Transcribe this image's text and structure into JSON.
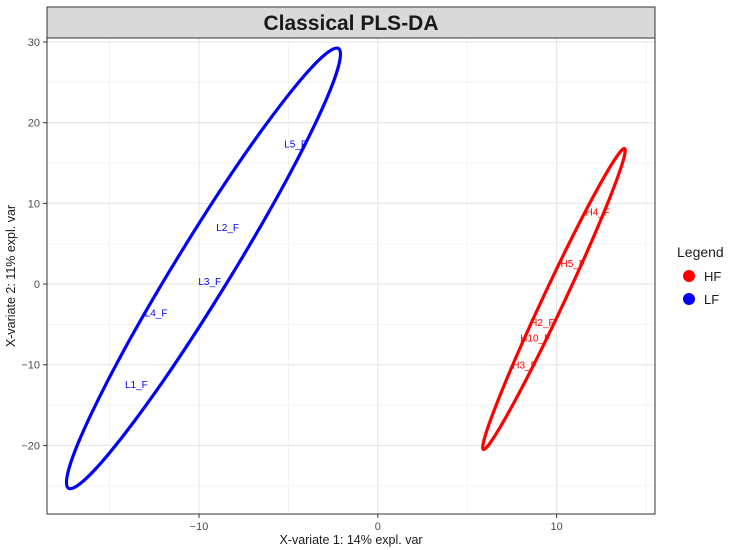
{
  "chart_data": {
    "type": "scatter",
    "title": "Classical PLS-DA",
    "xlabel": "X-variate 1: 14% expl. var",
    "ylabel": "X-variate 2: 11% expl. var",
    "xlim": [
      -18.5,
      15.5
    ],
    "ylim": [
      -28.5,
      30.5
    ],
    "x_ticks": [
      -10,
      0,
      10
    ],
    "y_ticks": [
      -20,
      -10,
      0,
      10,
      20,
      30
    ],
    "x_tick_labels": [
      "−10",
      "0",
      "10"
    ],
    "y_tick_labels": [
      "−20",
      "−10",
      "0",
      "10",
      "20",
      "30"
    ],
    "grid": true,
    "legend": {
      "title": "Legend",
      "position": "right",
      "entries": [
        {
          "name": "HF",
          "color": "#ff0000"
        },
        {
          "name": "LF",
          "color": "#0000ff"
        }
      ]
    },
    "series": [
      {
        "name": "HF",
        "color": "#ff0000",
        "points": [
          {
            "label": "H4_F",
            "x": 12.3,
            "y": 9.0
          },
          {
            "label": "H5_F",
            "x": 10.9,
            "y": 2.6
          },
          {
            "label": "H2_F",
            "x": 9.2,
            "y": -4.7
          },
          {
            "label": "H10_F",
            "x": 8.8,
            "y": -6.6
          },
          {
            "label": "H3_F",
            "x": 8.2,
            "y": -10.0
          }
        ],
        "ellipse": {
          "end1": [
            13.8,
            16.8
          ],
          "end2": [
            5.9,
            -20.5
          ],
          "half_width": 0.42
        }
      },
      {
        "name": "LF",
        "color": "#0000ff",
        "points": [
          {
            "label": "L5_F",
            "x": -4.6,
            "y": 17.4
          },
          {
            "label": "L2_F",
            "x": -8.4,
            "y": 7.1
          },
          {
            "label": "L3_F",
            "x": -9.4,
            "y": 0.4
          },
          {
            "label": "L4_F",
            "x": -12.4,
            "y": -3.5
          },
          {
            "label": "L1_F",
            "x": -13.5,
            "y": -12.4
          }
        ],
        "ellipse": {
          "end1": [
            -2.2,
            29.2
          ],
          "end2": [
            -17.3,
            -25.3
          ],
          "half_width": 1.1
        }
      }
    ]
  }
}
